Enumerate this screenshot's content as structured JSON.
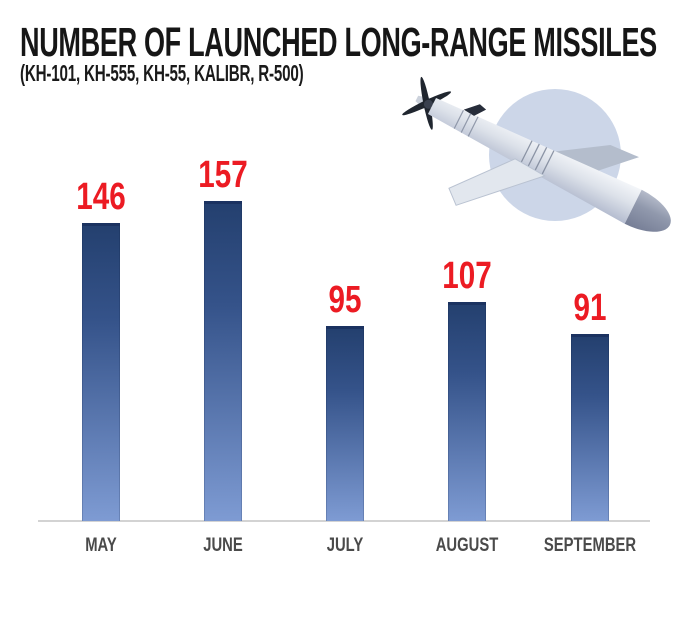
{
  "header": {
    "title": "NUMBER OF LAUNCHED LONG-RANGE MISSILES",
    "subtitle": "(KH-101, KH-555, KH-55, KALIBR, R-500)"
  },
  "illustration": {
    "name": "cruise-missile-render",
    "backdrop_circle_color": "#c7d1e5"
  },
  "chart_data": {
    "type": "bar",
    "title": "NUMBER OF LAUNCHED LONG-RANGE MISSILES (KH-101, KH-555, KH-55, KALIBR, R-500)",
    "categories": [
      "MAY",
      "JUNE",
      "JULY",
      "AUGUST",
      "SEPTEMBER"
    ],
    "values": [
      146,
      157,
      95,
      107,
      91
    ],
    "xlabel": "",
    "ylabel": "",
    "ylim": [
      0,
      170
    ],
    "grid": false,
    "legend": false,
    "value_labels_shown": true,
    "colors": {
      "value_label": "#ec1b23",
      "bar_gradient_top": "#24406f",
      "bar_gradient_bottom": "#7e9bd3",
      "bar_top_cap": "#1b3260",
      "axis_label": "#4a4a4a",
      "baseline": "#d3d3d3"
    }
  }
}
